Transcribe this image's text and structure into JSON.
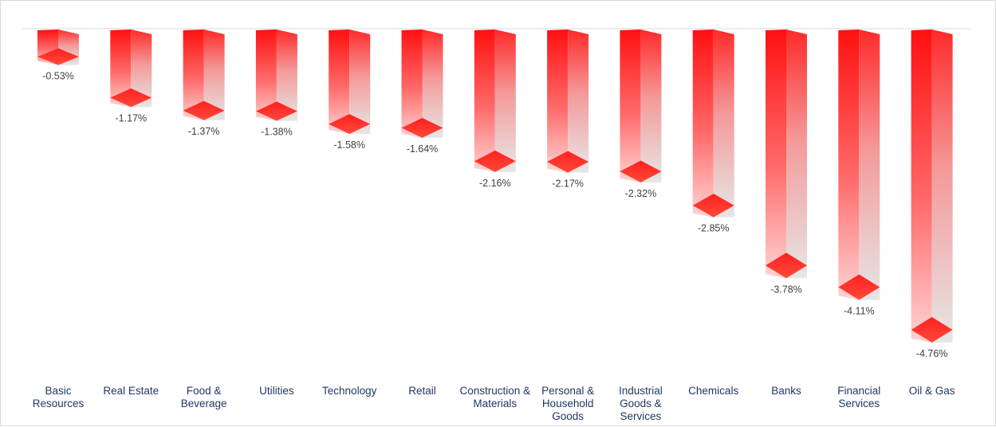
{
  "chart_data": {
    "type": "bar",
    "style": "3d-column",
    "title": "",
    "xlabel": "",
    "ylabel": "",
    "ylim": [
      -4.76,
      0
    ],
    "grid": false,
    "legend": "none",
    "colors": {
      "bar_front": "#ff0000",
      "bar_fade": "#e8e8e8",
      "baseline": "#d9d9d9",
      "value_text": "#404040",
      "category_text": "#1f3864"
    },
    "categories": [
      "Basic Resources",
      "Real Estate",
      "Food & Beverage",
      "Utilities",
      "Technology",
      "Retail",
      "Construction & Materials",
      "Personal & Household Goods",
      "Industrial Goods & Services",
      "Chemicals",
      "Banks",
      "Financial Services",
      "Oil & Gas"
    ],
    "category_lines": [
      [
        "Basic",
        "Resources"
      ],
      [
        "Real Estate"
      ],
      [
        "Food &",
        "Beverage"
      ],
      [
        "Utilities"
      ],
      [
        "Technology"
      ],
      [
        "Retail"
      ],
      [
        "Construction &",
        "Materials"
      ],
      [
        "Personal &",
        "Household",
        "Goods"
      ],
      [
        "Industrial",
        "Goods &",
        "Services"
      ],
      [
        "Chemicals"
      ],
      [
        "Banks"
      ],
      [
        "Financial",
        "Services"
      ],
      [
        "Oil & Gas"
      ]
    ],
    "values": [
      -0.53,
      -1.17,
      -1.37,
      -1.38,
      -1.58,
      -1.64,
      -2.16,
      -2.17,
      -2.32,
      -2.85,
      -3.78,
      -4.11,
      -4.76
    ],
    "data_labels": [
      "-0.53%",
      "-1.17%",
      "-1.37%",
      "-1.38%",
      "-1.58%",
      "-1.64%",
      "-2.16%",
      "-2.17%",
      "-2.32%",
      "-2.85%",
      "-3.78%",
      "-4.11%",
      "-4.76%"
    ]
  }
}
